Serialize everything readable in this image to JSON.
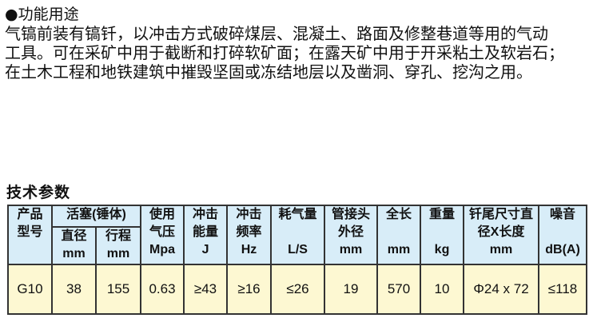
{
  "section_heading": "●功能用途",
  "description_lines": [
    "气镐前装有镐钎，以冲击方式破碎煤层、混凝土、路面及修整巷道等用的气动",
    "工具。可在采矿中用于截断和打碎软矿面；在露天矿中用于开采粘土及软岩石；",
    "在土木工程和地铁建筑中摧毁坚固或冻结地层以及凿洞、穿孔、挖沟之用。"
  ],
  "table_title": "技术参数",
  "table": {
    "header": {
      "model": "产品型号",
      "piston": "活塞(锤体)",
      "diameter": "直径",
      "diameter_unit": "mm",
      "stroke": "行程",
      "stroke_unit": "mm",
      "pressure": "使用气压",
      "pressure_unit": "Mpa",
      "energy": "冲击能量",
      "energy_unit": "J",
      "frequency": "冲击频率",
      "frequency_unit": "Hz",
      "air": "耗气量",
      "air_unit": "L/S",
      "hose": "管接头外径",
      "hose_unit": "mm",
      "length": "全长",
      "length_unit": "mm",
      "weight": "重量",
      "weight_unit": "kg",
      "shank": "钎尾尺寸直径X长度",
      "shank_unit": "mm",
      "noise": "噪音",
      "noise_unit": "dB(A)"
    },
    "rows": [
      [
        "G10",
        "38",
        "155",
        "0.63",
        "≥43",
        "≥16",
        "≤26",
        "19",
        "570",
        "10",
        "Φ24 x 72",
        "≤118"
      ]
    ]
  },
  "colors": {
    "header_bg": "#d8edf8",
    "row_bg": "#fdf8d2",
    "border": "#333333"
  }
}
